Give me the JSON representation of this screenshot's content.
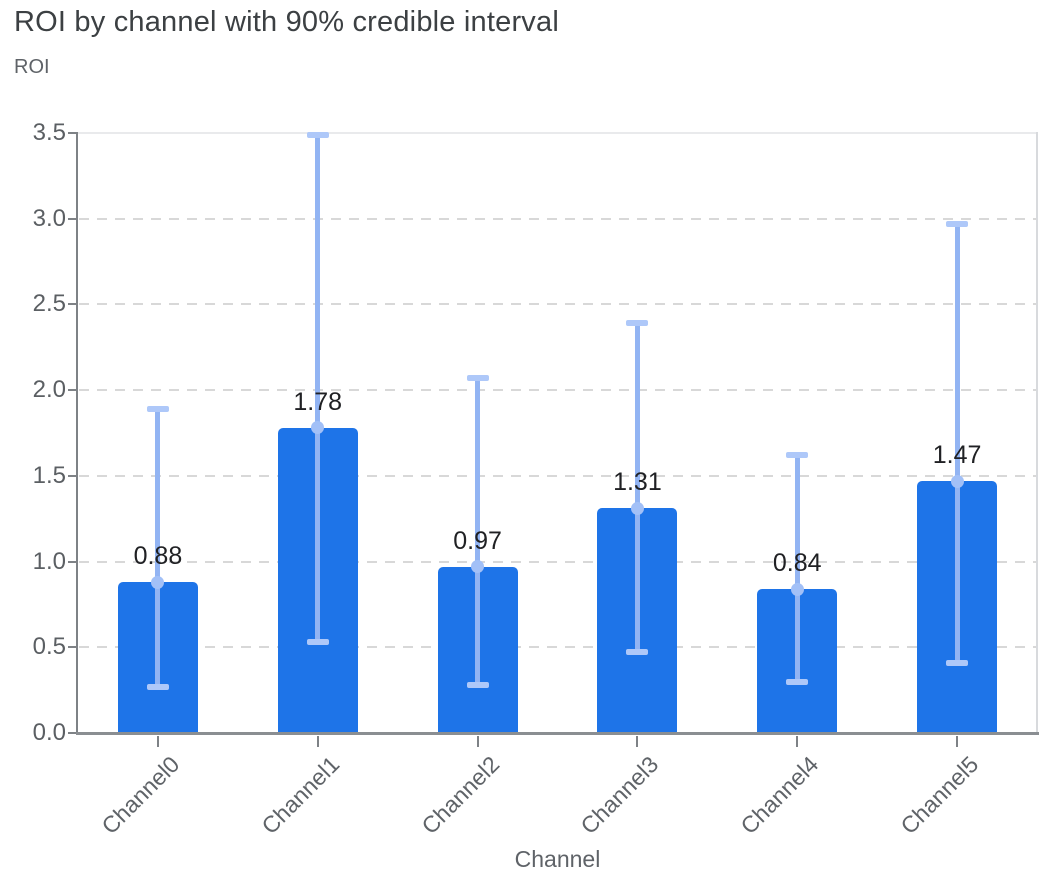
{
  "page": {
    "background": "#ffffff"
  },
  "chart": {
    "title": "ROI by channel with 90% credible interval",
    "y_axis_title": "ROI",
    "x_axis_title": "Channel"
  },
  "chart_data": {
    "type": "bar",
    "title": "ROI by channel with 90% credible interval",
    "xlabel": "Channel",
    "ylabel": "ROI",
    "categories": [
      "Channel0",
      "Channel1",
      "Channel2",
      "Channel3",
      "Channel4",
      "Channel5"
    ],
    "values": [
      0.88,
      1.78,
      0.97,
      1.31,
      0.84,
      1.47
    ],
    "bar_labels": [
      "0.88",
      "1.78",
      "0.97",
      "1.31",
      "0.84",
      "1.47"
    ],
    "ci_level": "90%",
    "error_low": [
      0.27,
      0.53,
      0.28,
      0.47,
      0.3,
      0.41
    ],
    "error_high": [
      1.89,
      3.49,
      2.07,
      2.39,
      1.62,
      2.97
    ],
    "ylim": [
      0,
      3.5
    ],
    "yticks": [
      "0.0",
      "0.5",
      "1.0",
      "1.5",
      "2.0",
      "2.5",
      "3.0",
      "3.5"
    ],
    "grid": "dashed-horizontal",
    "legend_position": "none",
    "colors": {
      "bar": "#1e74e8",
      "error_bar": "#92b4f3",
      "error_cap": "#aec8f9",
      "marker": "#a2c0f7",
      "gridline": "#d8d8d8",
      "title_text": "#3c4043",
      "axis_text": "#5f6368",
      "value_text": "#202124"
    }
  }
}
